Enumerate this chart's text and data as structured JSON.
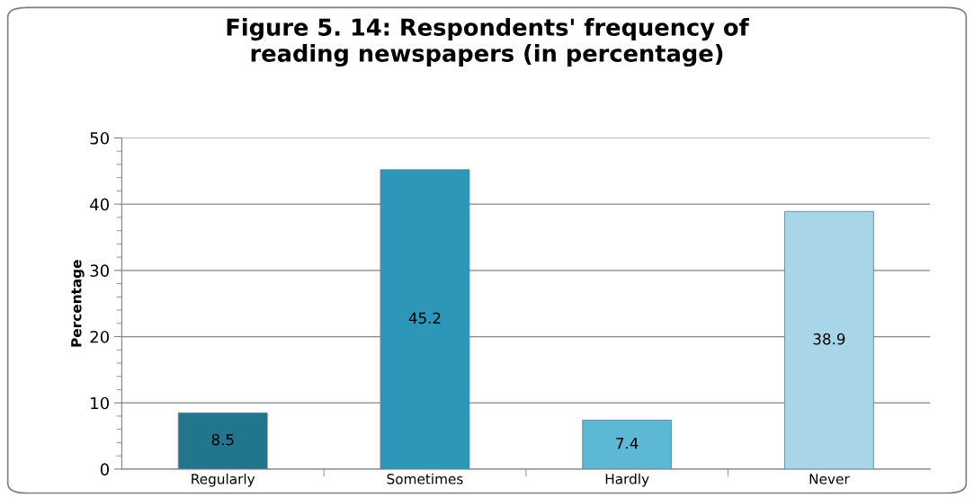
{
  "chart_data": {
    "type": "bar",
    "title": "Figure 5. 14: Respondents' frequency of reading newspapers (in percentage)",
    "ylabel": "Percentage",
    "categories": [
      "Regularly",
      "Sometimes",
      "Hardly",
      "Never"
    ],
    "values": [
      8.5,
      45.2,
      7.4,
      38.9
    ],
    "colors": [
      "#21758c",
      "#2c97b8",
      "#5cb8d3",
      "#a8d6e8"
    ],
    "ylim": [
      0,
      50
    ],
    "yticks": [
      0,
      10,
      20,
      30,
      40,
      50
    ],
    "grid": "y",
    "data_labels": true
  }
}
